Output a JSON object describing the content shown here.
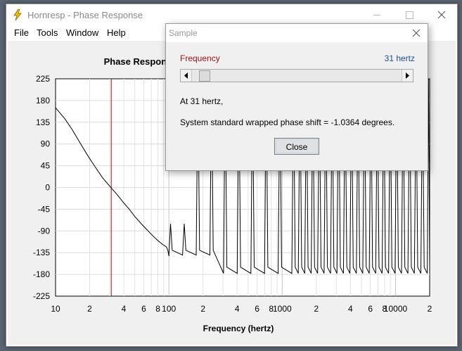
{
  "window": {
    "title": "Hornresp - Phase Response",
    "menu": [
      "File",
      "Tools",
      "Window",
      "Help"
    ],
    "icon": "lightning-icon",
    "buttons": [
      "minimize-icon",
      "maximize-icon",
      "close-icon"
    ]
  },
  "dialog": {
    "title": "Sample",
    "frequency_label": "Frequency",
    "frequency_value": "31 hertz",
    "slider_position": 0.04,
    "line1": "At 31 hertz,",
    "line2": "System standard wrapped phase shift = -1.0364 degrees.",
    "close_label": "Close"
  },
  "colors": {
    "accent_red": "#c00000",
    "value_blue": "#1c4fa0",
    "curve": "#000000"
  },
  "chart_data": {
    "type": "line",
    "title": "Phase Respons",
    "xlabel": "Frequency (hertz)",
    "ylabel": "",
    "x_scale": "log",
    "xlim": [
      10,
      20000
    ],
    "ylim": [
      -225,
      225
    ],
    "y_ticks": [
      225,
      180,
      135,
      90,
      45,
      0,
      -45,
      -90,
      -135,
      -180,
      -225
    ],
    "x_ticks": [
      {
        "v": 10,
        "t": "10"
      },
      {
        "v": 20,
        "t": "2"
      },
      {
        "v": 40,
        "t": "4"
      },
      {
        "v": 60,
        "t": "6"
      },
      {
        "v": 80,
        "t": "8"
      },
      {
        "v": 100,
        "t": "100"
      },
      {
        "v": 200,
        "t": "2"
      },
      {
        "v": 400,
        "t": "4"
      },
      {
        "v": 600,
        "t": "6"
      },
      {
        "v": 800,
        "t": "8"
      },
      {
        "v": 1000,
        "t": "1000"
      },
      {
        "v": 2000,
        "t": "2"
      },
      {
        "v": 4000,
        "t": "4"
      },
      {
        "v": 6000,
        "t": "6"
      },
      {
        "v": 8000,
        "t": "8"
      },
      {
        "v": 10000,
        "t": "10000"
      },
      {
        "v": 20000,
        "t": "2"
      }
    ],
    "marker": 31,
    "grid": true,
    "series": [
      {
        "x": [
          10,
          12,
          14,
          16,
          19,
          22,
          26,
          31,
          35,
          40,
          45,
          50,
          57,
          65,
          72,
          80,
          88,
          95,
          98,
          100
        ],
        "y": [
          165,
          143,
          120,
          97,
          68,
          45,
          20,
          -1,
          -15,
          -32,
          -46,
          -60,
          -75,
          -89,
          -100,
          -110,
          -118,
          -123,
          -130,
          -142
        ]
      }
    ]
  }
}
